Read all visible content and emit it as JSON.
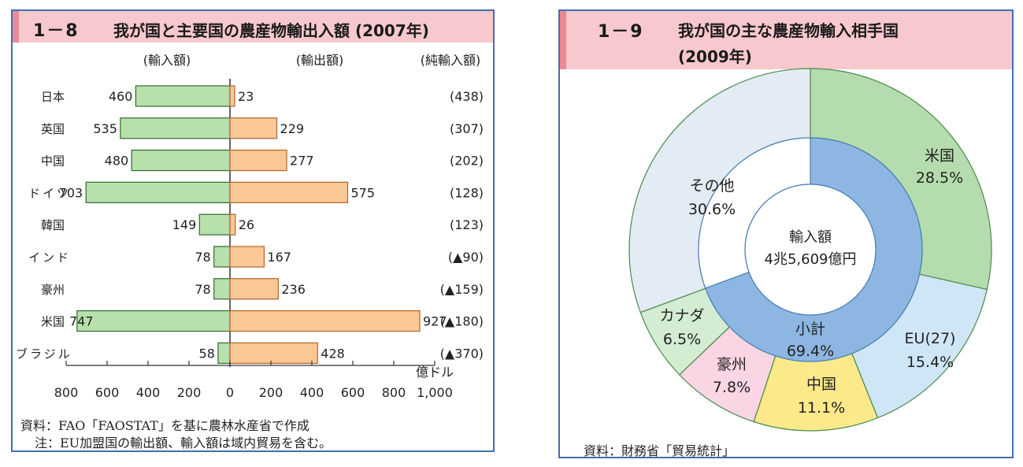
{
  "left_panel": {
    "number": "1－8",
    "title": "我が国と主要国の農産物輸出入額 (2007年)",
    "source": "資料：FAO「FAOSTAT」を基に農林水産省で作成",
    "note": "注：EU加盟国の輸出額、輸入額は域内貿易を含む。"
  },
  "right_panel": {
    "number": "1－9",
    "title": "我が国の主な農産物輸入相手国",
    "subtitle": "(2009年)",
    "source": "資料：財務省「貿易統計」"
  },
  "colors": {
    "import_bar": "#b7e0ad",
    "export_bar": "#f9c896",
    "title_bg": "#f7c8cd",
    "frame": "#3f6fb5"
  },
  "chart_data": [
    {
      "type": "bar",
      "orientation": "horizontal-diverging",
      "unit": "億ドル",
      "column_headers": [
        "(輸入額)",
        "(輸出額)",
        "(純輸入額)"
      ],
      "categories": [
        "日本",
        "英国",
        "中国",
        "ドイツ",
        "韓国",
        "インド",
        "豪州",
        "米国",
        "ブラジル"
      ],
      "series": [
        {
          "name": "(輸入額)",
          "values": [
            460,
            535,
            480,
            703,
            149,
            78,
            78,
            747,
            58
          ]
        },
        {
          "name": "(輸出額)",
          "values": [
            23,
            229,
            277,
            575,
            26,
            167,
            236,
            927,
            428
          ]
        }
      ],
      "net_import_labels": [
        "(438)",
        "(307)",
        "(202)",
        "(128)",
        "(123)",
        "(▲90)",
        "(▲159)",
        "(▲180)",
        "(▲370)"
      ],
      "x_ticks": [
        "800",
        "600",
        "400",
        "200",
        "0",
        "200",
        "400",
        "600",
        "800",
        "1,000"
      ],
      "xlim": [
        -800,
        1000
      ],
      "grid": false
    },
    {
      "type": "pie",
      "style": "donut",
      "center_label": [
        "輸入額",
        "4兆5,609億円"
      ],
      "outer": [
        {
          "label": "米国",
          "value": 28.5,
          "value_label": "28.5%",
          "color": "#b5dcae"
        },
        {
          "label": "EU(27)",
          "value": 15.4,
          "value_label": "15.4%",
          "color": "#cfe6f7"
        },
        {
          "label": "中国",
          "value": 11.1,
          "value_label": "11.1%",
          "color": "#fbe98a"
        },
        {
          "label": "豪州",
          "value": 7.8,
          "value_label": "7.8%",
          "color": "#fad5e4"
        },
        {
          "label": "カナダ",
          "value": 6.5,
          "value_label": "6.5%",
          "color": "#d3ecd2"
        },
        {
          "label": "その他",
          "value": 30.6,
          "value_label": "30.6%",
          "color": "#e3ebf4"
        }
      ],
      "inner": {
        "label": "小計",
        "value": 69.4,
        "value_label": "69.4%",
        "color": "#8db6e2"
      }
    }
  ]
}
